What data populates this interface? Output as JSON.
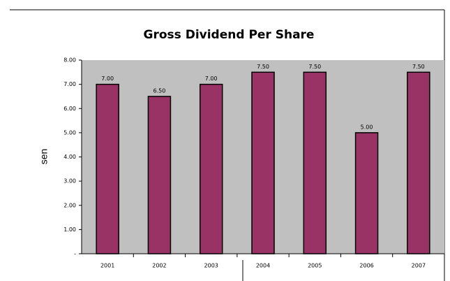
{
  "chart_data": {
    "type": "bar",
    "title": "Gross Dividend Per Share",
    "y_label": "sen",
    "categories": [
      "2001",
      "2002",
      "2003",
      "2004",
      "2005",
      "2006",
      "2007"
    ],
    "values": [
      7,
      6.5,
      7,
      7.5,
      7.5,
      5,
      7.5
    ],
    "value_labels": [
      "7.00",
      "6.50",
      "7.00",
      "7.50",
      "7.50",
      "5.00",
      "7.50"
    ],
    "color": "#993366",
    "plot_background": "#c0c0c0",
    "ylim": [
      0,
      8
    ],
    "yticks": [
      {
        "value": 0,
        "label": "-"
      },
      {
        "value": 1,
        "label": "1.00"
      },
      {
        "value": 2,
        "label": "2.00"
      },
      {
        "value": 3,
        "label": "3.00"
      },
      {
        "value": 4,
        "label": "4.00"
      },
      {
        "value": 5,
        "label": "5.00"
      },
      {
        "value": 6,
        "label": "6.00"
      },
      {
        "value": 7,
        "label": "7.00"
      },
      {
        "value": 8,
        "label": "8.00"
      }
    ],
    "grid": false
  }
}
